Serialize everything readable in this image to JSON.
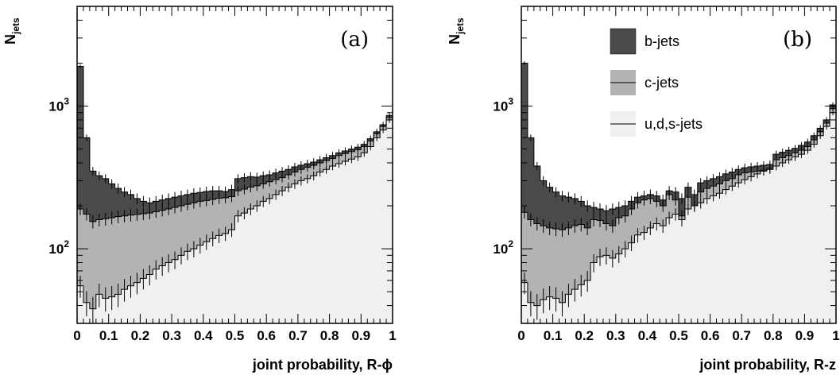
{
  "chart_data": [
    {
      "type": "area",
      "stacked": true,
      "panel_label": "(a)",
      "xlabel": "joint probability, R-ϕ",
      "ylabel": "N",
      "ylabel_sub": "jets",
      "log_y": true,
      "xlim": [
        0,
        1
      ],
      "ylim": [
        30,
        5000
      ],
      "x_ticks": [
        "0",
        "0.1",
        "0.2",
        "0.3",
        "0.4",
        "0.5",
        "0.6",
        "0.7",
        "0.8",
        "0.9",
        "1"
      ],
      "y_ticks": [
        {
          "base": "10",
          "exp": "2",
          "value": 100
        },
        {
          "base": "10",
          "exp": "3",
          "value": 1000
        }
      ],
      "bin_width": 0.02,
      "x": [
        0.0,
        0.02,
        0.04,
        0.06,
        0.08,
        0.1,
        0.12,
        0.14,
        0.16,
        0.18,
        0.2,
        0.22,
        0.24,
        0.26,
        0.28,
        0.3,
        0.32,
        0.34,
        0.36,
        0.38,
        0.4,
        0.42,
        0.44,
        0.46,
        0.48,
        0.5,
        0.52,
        0.54,
        0.56,
        0.58,
        0.6,
        0.62,
        0.64,
        0.66,
        0.68,
        0.7,
        0.72,
        0.74,
        0.76,
        0.78,
        0.8,
        0.82,
        0.84,
        0.86,
        0.88,
        0.9,
        0.92,
        0.94,
        0.96,
        0.98
      ],
      "series": [
        {
          "name": "u,d,s-jets",
          "color": "#f0f0f0",
          "values": [
            55,
            42,
            38,
            48,
            45,
            46,
            48,
            52,
            55,
            58,
            62,
            66,
            72,
            76,
            80,
            84,
            90,
            96,
            100,
            106,
            112,
            118,
            124,
            128,
            136,
            170,
            178,
            190,
            200,
            215,
            225,
            240,
            255,
            270,
            285,
            300,
            310,
            325,
            345,
            360,
            380,
            395,
            410,
            425,
            440,
            470,
            520,
            600,
            680,
            800
          ]
        },
        {
          "name": "c-jets",
          "color": "#b3b3b3",
          "values": [
            190,
            175,
            155,
            160,
            162,
            165,
            168,
            170,
            172,
            174,
            176,
            178,
            182,
            186,
            190,
            195,
            200,
            205,
            210,
            215,
            218,
            222,
            226,
            228,
            232,
            255,
            262,
            270,
            276,
            285,
            295,
            305,
            315,
            330,
            345,
            360,
            372,
            385,
            400,
            415,
            430,
            450,
            465,
            480,
            495,
            520,
            570,
            640,
            720,
            830
          ]
        },
        {
          "name": "b-jets",
          "color": "#4a4a4a",
          "values": [
            1900,
            600,
            350,
            325,
            310,
            285,
            265,
            250,
            240,
            225,
            215,
            210,
            215,
            220,
            225,
            230,
            235,
            240,
            245,
            248,
            252,
            255,
            255,
            252,
            260,
            310,
            315,
            320,
            318,
            325,
            330,
            340,
            350,
            360,
            375,
            385,
            395,
            405,
            420,
            435,
            450,
            470,
            485,
            500,
            515,
            540,
            590,
            660,
            740,
            860
          ]
        }
      ]
    },
    {
      "type": "area",
      "stacked": true,
      "panel_label": "(b)",
      "xlabel": "joint probability, R-z",
      "ylabel": "N",
      "ylabel_sub": "jets",
      "log_y": true,
      "xlim": [
        0,
        1
      ],
      "ylim": [
        30,
        5000
      ],
      "x_ticks": [
        "0",
        "0.1",
        "0.2",
        "0.3",
        "0.4",
        "0.5",
        "0.6",
        "0.7",
        "0.8",
        "0.9",
        "1"
      ],
      "y_ticks": [
        {
          "base": "10",
          "exp": "2",
          "value": 100
        },
        {
          "base": "10",
          "exp": "3",
          "value": 1000
        }
      ],
      "legend_position": "top-center",
      "bin_width": 0.02,
      "x": [
        0.0,
        0.02,
        0.04,
        0.06,
        0.08,
        0.1,
        0.12,
        0.14,
        0.16,
        0.18,
        0.2,
        0.22,
        0.24,
        0.26,
        0.28,
        0.3,
        0.32,
        0.34,
        0.36,
        0.38,
        0.4,
        0.42,
        0.44,
        0.46,
        0.48,
        0.5,
        0.52,
        0.54,
        0.56,
        0.58,
        0.6,
        0.62,
        0.64,
        0.66,
        0.68,
        0.7,
        0.72,
        0.74,
        0.76,
        0.78,
        0.8,
        0.82,
        0.84,
        0.86,
        0.88,
        0.9,
        0.92,
        0.94,
        0.96,
        0.98
      ],
      "series": [
        {
          "name": "u,d,s-jets",
          "color": "#f0f0f0",
          "values": [
            58,
            42,
            40,
            44,
            46,
            45,
            42,
            48,
            52,
            56,
            60,
            80,
            88,
            90,
            86,
            92,
            100,
            110,
            125,
            130,
            140,
            150,
            145,
            165,
            175,
            160,
            190,
            200,
            210,
            225,
            235,
            245,
            260,
            275,
            290,
            305,
            320,
            335,
            350,
            365,
            380,
            400,
            420,
            440,
            460,
            490,
            540,
            620,
            720,
            900
          ]
        },
        {
          "name": "c-jets",
          "color": "#b3b3b3",
          "values": [
            180,
            160,
            150,
            145,
            140,
            138,
            136,
            140,
            145,
            148,
            140,
            160,
            158,
            150,
            145,
            165,
            170,
            190,
            210,
            220,
            225,
            215,
            200,
            240,
            220,
            170,
            230,
            200,
            250,
            265,
            275,
            285,
            300,
            310,
            330,
            340,
            345,
            350,
            355,
            360,
            420,
            435,
            450,
            470,
            490,
            520,
            580,
            660,
            760,
            960
          ]
        },
        {
          "name": "b-jets",
          "color": "#4a4a4a",
          "values": [
            2000,
            600,
            380,
            300,
            270,
            250,
            235,
            230,
            225,
            215,
            200,
            195,
            190,
            185,
            190,
            195,
            200,
            215,
            230,
            235,
            240,
            235,
            220,
            255,
            250,
            225,
            270,
            240,
            290,
            300,
            310,
            320,
            335,
            345,
            360,
            370,
            375,
            380,
            385,
            390,
            460,
            475,
            490,
            505,
            530,
            560,
            620,
            700,
            800,
            1020
          ]
        }
      ]
    }
  ]
}
